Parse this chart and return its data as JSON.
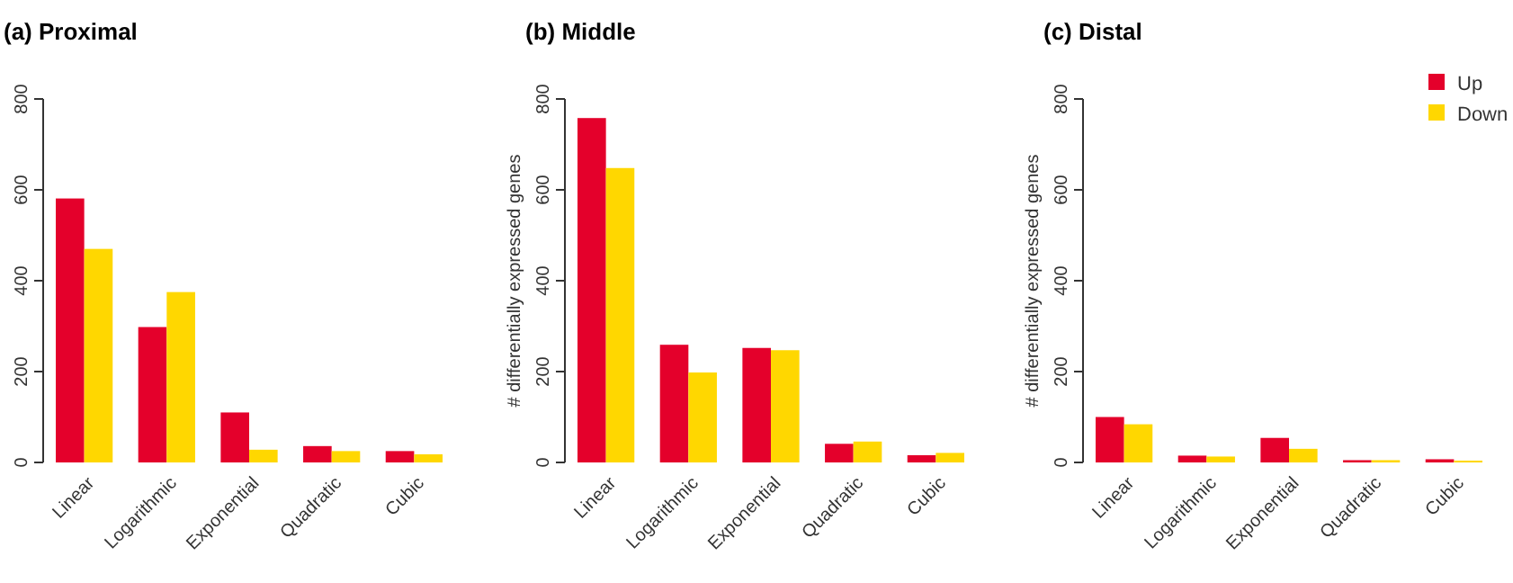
{
  "chart_data": [
    {
      "type": "bar",
      "title": "(a) Proximal",
      "categories": [
        "Linear",
        "Logarithmic",
        "Exponential",
        "Quadratic",
        "Cubic"
      ],
      "ylim": [
        0,
        800
      ],
      "yticks": [
        0,
        200,
        400,
        600,
        800
      ],
      "series": [
        {
          "color": "#e4002b",
          "values": [
            581,
            298,
            110,
            36,
            25
          ]
        },
        {
          "color": "#ffd700",
          "values": [
            470,
            375,
            28,
            25,
            18
          ]
        }
      ]
    },
    {
      "type": "bar",
      "title": "(b) Middle",
      "ylabel": "# differentially expressed genes",
      "categories": [
        "Linear",
        "Logarithmic",
        "Exponential",
        "Quadratic",
        "Cubic"
      ],
      "ylim": [
        0,
        800
      ],
      "yticks": [
        0,
        200,
        400,
        600,
        800
      ],
      "series": [
        {
          "color": "#e4002b",
          "values": [
            758,
            259,
            252,
            41,
            16
          ]
        },
        {
          "color": "#ffd700",
          "values": [
            648,
            198,
            247,
            46,
            21
          ]
        }
      ]
    },
    {
      "type": "bar",
      "title": "(c) Distal",
      "ylabel": "# differentially expressed genes",
      "categories": [
        "Linear",
        "Logarithmic",
        "Exponential",
        "Quadratic",
        "Cubic"
      ],
      "ylim": [
        0,
        800
      ],
      "yticks": [
        0,
        200,
        400,
        600,
        800
      ],
      "legend": "top right",
      "series": [
        {
          "name": "Up",
          "color": "#e4002b",
          "values": [
            100,
            15,
            54,
            5,
            7
          ]
        },
        {
          "name": "Down",
          "color": "#ffd700",
          "values": [
            84,
            13,
            30,
            5,
            4
          ]
        }
      ]
    }
  ]
}
